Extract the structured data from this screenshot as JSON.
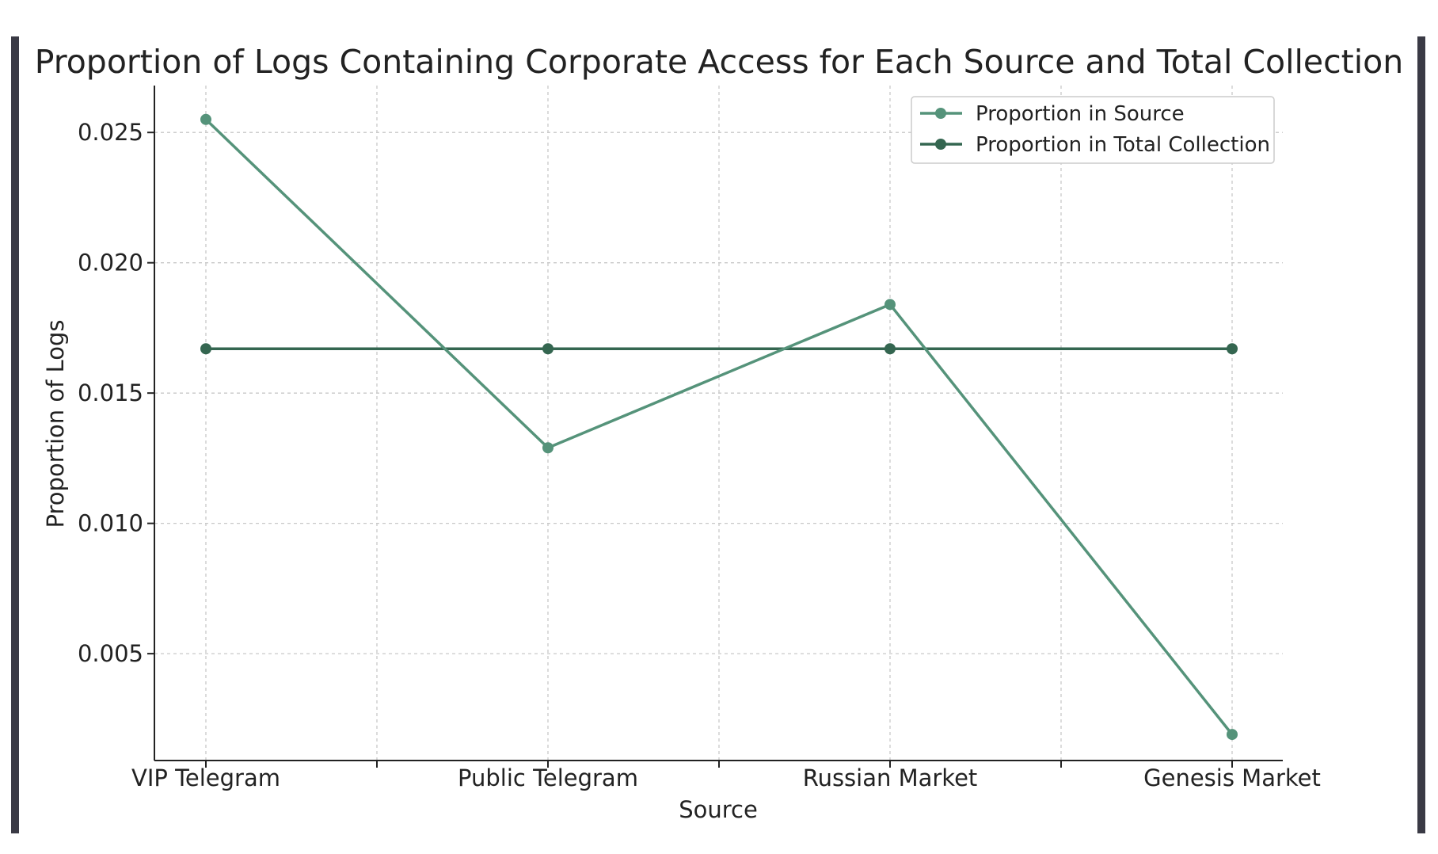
{
  "chart_data": {
    "type": "line",
    "title": "Proportion of Logs Containing Corporate Access for Each Source and Total Collection",
    "xlabel": "Source",
    "ylabel": "Proportion of Logs",
    "categories": [
      "VIP Telegram",
      "Public Telegram",
      "Russian Market",
      "Genesis Market"
    ],
    "series": [
      {
        "name": "Proportion in Source",
        "values": [
          0.0255,
          0.0129,
          0.0184,
          0.0019
        ],
        "color": "#55937a"
      },
      {
        "name": "Proportion in Total Collection",
        "values": [
          0.0167,
          0.0167,
          0.0167,
          0.0167
        ],
        "color": "#346650"
      }
    ],
    "yticks": [
      0.005,
      0.01,
      0.015,
      0.02,
      0.025
    ],
    "ytick_labels": [
      "0.005",
      "0.010",
      "0.015",
      "0.020",
      "0.025"
    ],
    "ylim": [
      0.0009,
      0.0268
    ],
    "grid": true,
    "grid_style": "dashed",
    "legend": "top-right"
  }
}
